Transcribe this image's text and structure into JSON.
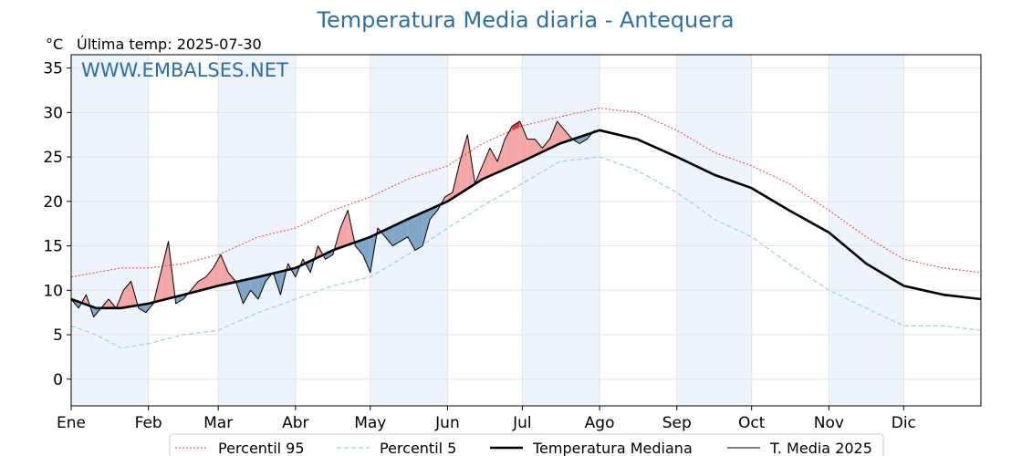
{
  "header": {
    "title": "Temperatura Media diaria - Antequera",
    "unit": "°C",
    "last_temp": "Última temp: 2025-07-30",
    "watermark": "WWW.EMBALSES.NET"
  },
  "colors": {
    "p95": "#e8443a",
    "p5": "#9fcbe0",
    "median": "#000000",
    "current": "#000000",
    "above_fill": "#f4a6a6",
    "above_fill_strong": "#d94040",
    "below_fill": "#7fa6c6",
    "band": "#eef4fb",
    "title": "#2e6ea0"
  },
  "chart_data": {
    "type": "line",
    "title": "Temperatura Media diaria - Antequera",
    "ylabel": "°C",
    "ylim": [
      -3,
      36.5
    ],
    "xlim": [
      0,
      365
    ],
    "yticks": [
      0,
      5,
      10,
      15,
      20,
      25,
      30,
      35
    ],
    "grid": true,
    "legend_position": "bottom",
    "months": [
      {
        "label": "Ene",
        "start": 0
      },
      {
        "label": "Feb",
        "start": 31
      },
      {
        "label": "Mar",
        "start": 59
      },
      {
        "label": "Abr",
        "start": 90
      },
      {
        "label": "May",
        "start": 120
      },
      {
        "label": "Jun",
        "start": 151
      },
      {
        "label": "Jul",
        "start": 181
      },
      {
        "label": "Ago",
        "start": 212
      },
      {
        "label": "Sep",
        "start": 243
      },
      {
        "label": "Oct",
        "start": 273
      },
      {
        "label": "Nov",
        "start": 304
      },
      {
        "label": "Dic",
        "start": 334
      }
    ],
    "series": [
      {
        "key": "p95",
        "name": "Percentil 95",
        "style": "dotted",
        "x": [
          0,
          10,
          20,
          31,
          45,
          59,
          75,
          90,
          105,
          120,
          135,
          151,
          165,
          181,
          196,
          212,
          227,
          243,
          258,
          273,
          288,
          304,
          319,
          334,
          350,
          365
        ],
        "y": [
          11.5,
          12,
          12.5,
          12.5,
          13,
          14,
          16,
          17,
          19,
          20.5,
          22.5,
          24,
          26.5,
          28.5,
          29.5,
          30.5,
          30,
          28,
          25.5,
          24,
          22,
          19,
          16,
          13.5,
          12.5,
          12
        ]
      },
      {
        "key": "p5",
        "name": "Percentil 5",
        "style": "dashed",
        "x": [
          0,
          10,
          20,
          31,
          45,
          59,
          75,
          90,
          105,
          120,
          135,
          151,
          165,
          181,
          196,
          212,
          227,
          243,
          258,
          273,
          288,
          304,
          319,
          334,
          350,
          365
        ],
        "y": [
          6,
          5,
          3.5,
          4,
          5,
          5.5,
          7.5,
          9,
          10.5,
          11.5,
          14,
          17,
          19.5,
          22,
          24.5,
          25,
          23.5,
          21,
          18,
          16,
          13,
          10,
          8,
          6,
          6,
          5.5
        ]
      },
      {
        "key": "median",
        "name": "Temperatura Mediana",
        "style": "solid-bold",
        "x": [
          0,
          10,
          20,
          31,
          45,
          59,
          75,
          90,
          105,
          120,
          135,
          151,
          165,
          181,
          196,
          212,
          227,
          243,
          258,
          273,
          288,
          304,
          319,
          334,
          350,
          365
        ],
        "y": [
          9,
          8,
          8,
          8.5,
          9.5,
          10.5,
          11.5,
          12.5,
          14.5,
          16,
          18,
          20,
          22.5,
          24.5,
          26.5,
          28,
          27,
          25,
          23,
          21.5,
          19,
          16.5,
          13,
          10.5,
          9.5,
          9
        ]
      },
      {
        "key": "current",
        "name": "T. Media 2025",
        "style": "solid-thin",
        "x": [
          0,
          3,
          6,
          9,
          12,
          15,
          18,
          21,
          24,
          27,
          30,
          33,
          36,
          39,
          42,
          45,
          48,
          51,
          54,
          57,
          60,
          63,
          66,
          69,
          72,
          75,
          78,
          81,
          84,
          87,
          90,
          93,
          96,
          99,
          102,
          105,
          108,
          111,
          114,
          117,
          120,
          123,
          126,
          129,
          132,
          135,
          138,
          141,
          144,
          147,
          150,
          153,
          156,
          159,
          162,
          165,
          168,
          171,
          174,
          177,
          180,
          183,
          186,
          189,
          192,
          195,
          198,
          201,
          204,
          207,
          210
        ],
        "y": [
          9,
          8,
          9.5,
          7,
          8,
          9,
          8,
          10,
          11,
          8,
          7.5,
          8.5,
          12,
          15.5,
          8.5,
          9,
          10,
          11,
          11.5,
          12.5,
          14,
          12,
          11,
          8.5,
          10,
          9,
          11,
          12,
          9.5,
          13,
          11.5,
          13.5,
          12,
          15,
          13.5,
          14,
          17,
          19,
          15,
          14,
          12,
          17,
          16,
          15,
          15.5,
          16,
          14.5,
          15,
          18,
          19,
          20.5,
          21,
          24.5,
          27.5,
          22,
          24,
          26,
          24.5,
          27,
          28.5,
          29,
          27,
          27,
          26,
          27,
          29,
          28,
          27,
          26.5,
          27,
          28
        ]
      }
    ]
  },
  "legend": {
    "items": [
      {
        "label": "Percentil 95"
      },
      {
        "label": "Percentil 5"
      },
      {
        "label": "Temperatura Mediana"
      },
      {
        "label": "T. Media 2025"
      }
    ]
  }
}
